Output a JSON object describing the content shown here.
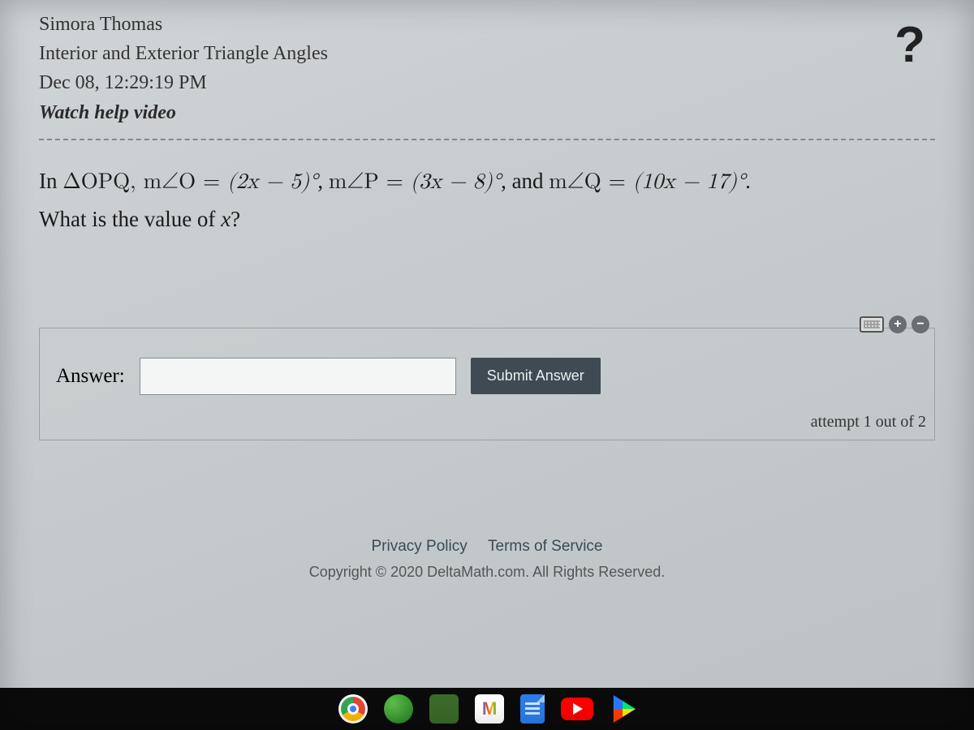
{
  "header": {
    "student_name": "Simora Thomas",
    "assignment_title": "Interior and Exterior Triangle Angles",
    "timestamp": "Dec 08, 12:29:19 PM",
    "help_video_label": "Watch help video",
    "help_icon_glyph": "?"
  },
  "problem": {
    "prefix": "In ",
    "triangle": "ΔOPQ, ",
    "angle_O_label": "m∠O",
    "eq": " = ",
    "angle_O_expr": "(2x − 5)°",
    "sep1": ", ",
    "angle_P_label": "m∠P",
    "angle_P_expr": "(3x − 8)°",
    "sep2": ", and ",
    "angle_Q_label": "m∠Q",
    "angle_Q_expr": "(10x − 17)°",
    "tail": ".",
    "question_line": "What is the value of x?"
  },
  "answer_panel": {
    "label": "Answer:",
    "input_value": "",
    "submit_label": "Submit Answer",
    "attempt_text": "attempt 1 out of 2",
    "tool_plus": "+",
    "tool_minus": "−"
  },
  "footer": {
    "privacy": "Privacy Policy",
    "terms": "Terms of Service",
    "copyright": "Copyright © 2020 DeltaMath.com. All Rights Reserved."
  },
  "colors": {
    "submit_bg": "#3f4a52",
    "submit_fg": "#e9eef0",
    "panel_border": "#9aa0a4"
  }
}
